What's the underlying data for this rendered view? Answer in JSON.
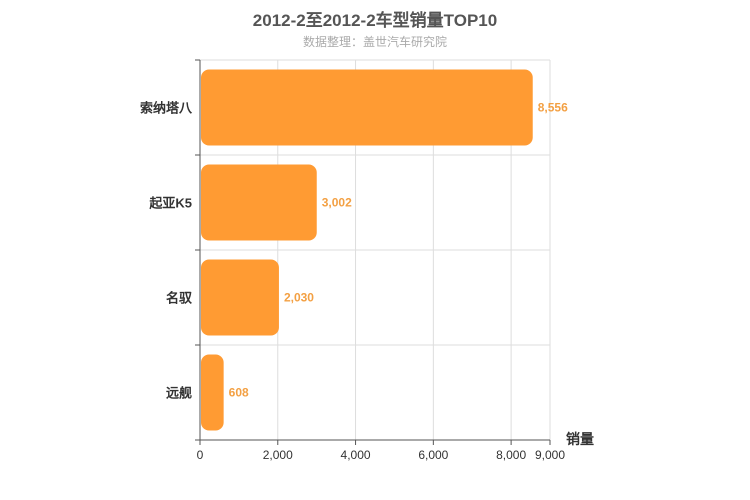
{
  "chart_data": {
    "type": "bar",
    "orientation": "horizontal",
    "title": "2012-2至2012-2车型销量TOP10",
    "subtitle": "数据整理：盖世汽车研究院",
    "categories": [
      "索纳塔八",
      "起亚K5",
      "名驭",
      "远舰"
    ],
    "values": [
      8556,
      3002,
      2030,
      608
    ],
    "data_labels": [
      "8,556",
      "3,002",
      "2,030",
      "608"
    ],
    "xlabel": "销量",
    "xlim": [
      0,
      9000
    ],
    "x_ticks": [
      0,
      2000,
      4000,
      6000,
      8000,
      9000
    ],
    "x_tick_labels": [
      "0",
      "2,000",
      "4,000",
      "6,000",
      "8,000",
      "9,000"
    ],
    "grid": true,
    "bar_color": "#ff9b33",
    "label_color": "#f3a043"
  }
}
